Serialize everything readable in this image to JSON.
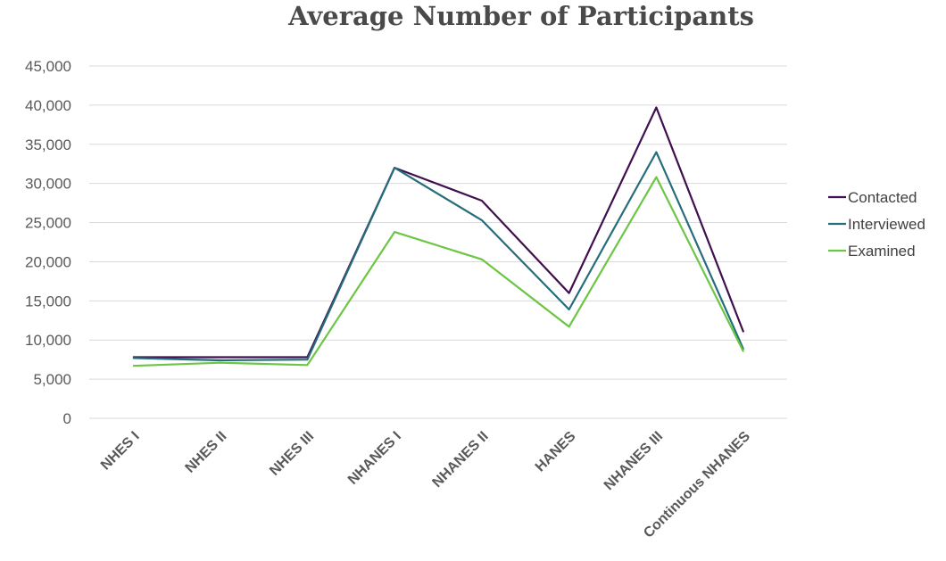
{
  "chart_data": {
    "type": "line",
    "title": "Average Number of Participants",
    "xlabel": "",
    "ylabel": "",
    "categories": [
      "NHES I",
      "NHES II",
      "NHES III",
      "NHANES I",
      "NHANES II",
      "HANES",
      "NHANES III",
      "Continuous NHANES"
    ],
    "ylim": [
      0,
      45000
    ],
    "yticks": [
      0,
      5000,
      10000,
      15000,
      20000,
      25000,
      30000,
      35000,
      40000,
      45000
    ],
    "ytick_labels": [
      "0",
      "5,000",
      "10,000",
      "15,000",
      "20,000",
      "25,000",
      "30,000",
      "35,000",
      "40,000",
      "45,000"
    ],
    "grid": true,
    "legend_position": "right",
    "series": [
      {
        "name": "Contacted",
        "color": "#3f0f4f",
        "values": [
          7800,
          7800,
          7800,
          32000,
          27800,
          16000,
          39700,
          11000
        ]
      },
      {
        "name": "Interviewed",
        "color": "#256d7b",
        "values": [
          7700,
          7400,
          7500,
          32000,
          25300,
          13900,
          34000,
          8800
        ]
      },
      {
        "name": "Examined",
        "color": "#6cc644",
        "values": [
          6700,
          7100,
          6800,
          23800,
          20300,
          11700,
          30800,
          8500
        ]
      }
    ]
  }
}
